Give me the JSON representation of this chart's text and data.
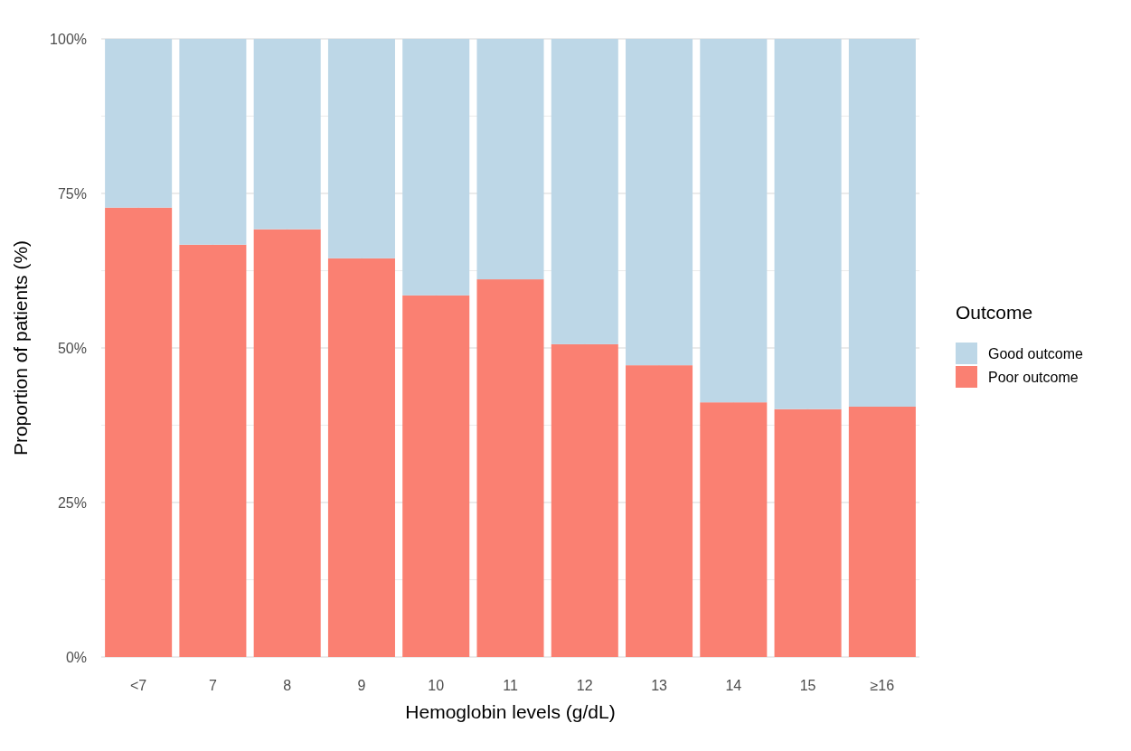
{
  "chart_data": {
    "type": "bar",
    "stacked": true,
    "xlabel": "Hemoglobin levels (g/dL)",
    "ylabel": "Proportion of patients (%)",
    "legend_title": "Outcome",
    "legend": "right",
    "grid": true,
    "categories": [
      "<7",
      "7",
      "8",
      "9",
      "10",
      "11",
      "12",
      "13",
      "14",
      "15",
      "≥16"
    ],
    "series": [
      {
        "name": "Poor outcome",
        "color": "#fa8072",
        "values": [
          72.7,
          66.7,
          69.2,
          64.5,
          58.5,
          61.1,
          50.6,
          47.2,
          41.2,
          40.1,
          40.5
        ]
      },
      {
        "name": "Good outcome",
        "color": "#bdd7e7",
        "values": [
          27.3,
          33.3,
          30.8,
          35.5,
          41.5,
          38.9,
          49.4,
          52.8,
          58.8,
          59.9,
          59.5
        ]
      }
    ],
    "ylim": [
      0,
      100
    ],
    "yticks": [
      {
        "value": 0,
        "label": "0%"
      },
      {
        "value": 12.5,
        "label": null
      },
      {
        "value": 25,
        "label": "25%"
      },
      {
        "value": 37.5,
        "label": null
      },
      {
        "value": 50,
        "label": "50%"
      },
      {
        "value": 62.5,
        "label": null
      },
      {
        "value": 75,
        "label": "75%"
      },
      {
        "value": 87.5,
        "label": null
      },
      {
        "value": 100,
        "label": "100%"
      }
    ]
  }
}
